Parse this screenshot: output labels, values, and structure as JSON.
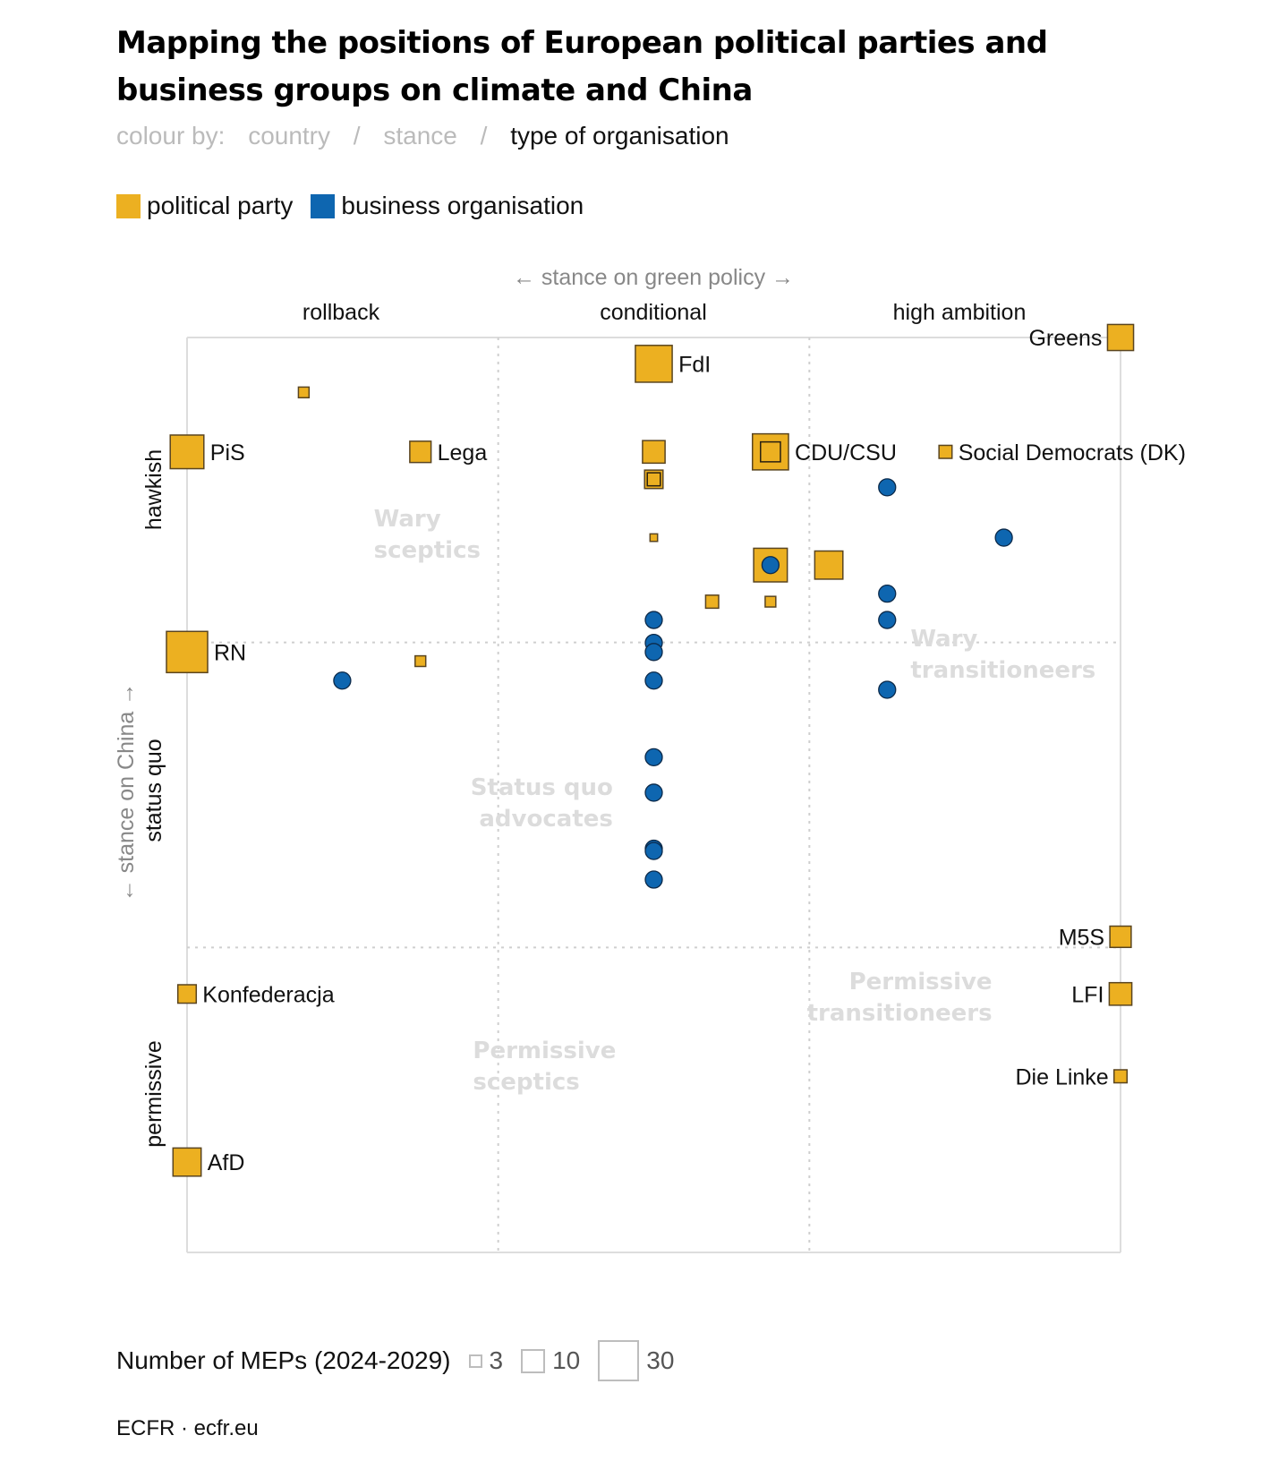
{
  "title": "Mapping the positions of European political parties and business groups on climate and China",
  "colour_by": {
    "label": "colour by:",
    "options": [
      "country",
      "stance",
      "type of organisation"
    ],
    "separator": "/",
    "active": "type of organisation"
  },
  "legend": [
    {
      "label": "political party",
      "color": "#ecb021"
    },
    {
      "label": "business organisation",
      "color": "#0e66b0"
    }
  ],
  "size_legend": {
    "label": "Number of MEPs (2024-2029)",
    "values": [
      "3",
      "10",
      "30"
    ]
  },
  "source": "ECFR · ecfr.eu",
  "chart_data": {
    "type": "scatter",
    "title": "Mapping the positions of European political parties and business groups on climate and China",
    "xlabel": "← stance on green policy →",
    "ylabel": "← stance on China →",
    "x_categories": [
      "rollback",
      "conditional",
      "high ambition"
    ],
    "y_categories": [
      "hawkish",
      "status quo",
      "permissive"
    ],
    "xlim": [
      0,
      8
    ],
    "ylim": [
      0,
      8
    ],
    "grid": "dotted lines at category thirds",
    "quadrant_labels": [
      {
        "text": [
          "Wary",
          "sceptics"
        ],
        "x": 1.6,
        "y": 6.35,
        "anchor": "start"
      },
      {
        "text": [
          "Wary",
          "transitioneers"
        ],
        "x": 6.2,
        "y": 5.3,
        "anchor": "start"
      },
      {
        "text": [
          "Status quo",
          "advocates"
        ],
        "x": 3.65,
        "y": 4.0,
        "anchor": "end"
      },
      {
        "text": [
          "Permissive",
          "transitioneers"
        ],
        "x": 6.9,
        "y": 2.3,
        "anchor": "end"
      },
      {
        "text": [
          "Permissive",
          "sceptics"
        ],
        "x": 2.45,
        "y": 1.7,
        "anchor": "start"
      }
    ],
    "series": [
      {
        "name": "political party",
        "marker": "square",
        "color": "#ecb021",
        "points": [
          {
            "label": "Greens",
            "x": 8.0,
            "y": 8.0,
            "meps": 12,
            "label_side": "left"
          },
          {
            "label": "FdI",
            "x": 4.0,
            "y": 7.77,
            "meps": 24,
            "label_side": "right"
          },
          {
            "label": "",
            "x": 1.0,
            "y": 7.52,
            "meps": 2
          },
          {
            "label": "PiS",
            "x": 0.0,
            "y": 7.0,
            "meps": 20,
            "label_side": "right"
          },
          {
            "label": "Lega",
            "x": 2.0,
            "y": 7.0,
            "meps": 8,
            "label_side": "right"
          },
          {
            "label": "",
            "x": 4.0,
            "y": 7.0,
            "meps": 9
          },
          {
            "label": "CDU/CSU",
            "x": 5.0,
            "y": 7.0,
            "meps": 23,
            "inner_meps": 7,
            "label_side": "right"
          },
          {
            "label": "Social Democrats (DK)",
            "x": 6.5,
            "y": 7.0,
            "meps": 3,
            "label_side": "right"
          },
          {
            "label": "",
            "x": 4.0,
            "y": 6.76,
            "meps": 6,
            "inner_meps": 3
          },
          {
            "label": "",
            "x": 4.0,
            "y": 6.25,
            "meps": 1
          },
          {
            "label": "",
            "x": 5.0,
            "y": 6.01,
            "meps": 20
          },
          {
            "label": "",
            "x": 5.5,
            "y": 6.01,
            "meps": 14
          },
          {
            "label": "",
            "x": 4.5,
            "y": 5.69,
            "meps": 3
          },
          {
            "label": "",
            "x": 5.0,
            "y": 5.69,
            "meps": 2
          },
          {
            "label": "RN",
            "x": 0.0,
            "y": 5.25,
            "meps": 30,
            "label_side": "right"
          },
          {
            "label": "",
            "x": 2.0,
            "y": 5.17,
            "meps": 2
          },
          {
            "label": "M5S",
            "x": 8.0,
            "y": 2.76,
            "meps": 8,
            "label_side": "left"
          },
          {
            "label": "Konfederacja",
            "x": 0.0,
            "y": 2.26,
            "meps": 6,
            "label_side": "right"
          },
          {
            "label": "LFI",
            "x": 8.0,
            "y": 2.26,
            "meps": 9,
            "label_side": "left"
          },
          {
            "label": "Die Linke",
            "x": 8.0,
            "y": 1.54,
            "meps": 3,
            "label_side": "left"
          },
          {
            "label": "AfD",
            "x": 0.0,
            "y": 0.79,
            "meps": 14,
            "label_side": "right"
          }
        ]
      },
      {
        "name": "business organisation",
        "marker": "circle",
        "color": "#0e66b0",
        "points": [
          {
            "x": 6.0,
            "y": 6.69
          },
          {
            "x": 7.0,
            "y": 6.25
          },
          {
            "x": 5.0,
            "y": 6.01
          },
          {
            "x": 6.0,
            "y": 5.76
          },
          {
            "x": 6.0,
            "y": 5.53
          },
          {
            "x": 4.0,
            "y": 5.53
          },
          {
            "x": 4.0,
            "y": 5.33
          },
          {
            "x": 4.0,
            "y": 5.25
          },
          {
            "x": 1.33,
            "y": 5.0
          },
          {
            "x": 4.0,
            "y": 5.0
          },
          {
            "x": 6.0,
            "y": 4.92
          },
          {
            "x": 4.0,
            "y": 4.33
          },
          {
            "x": 4.0,
            "y": 4.02
          },
          {
            "x": 4.0,
            "y": 3.53
          },
          {
            "x": 4.0,
            "y": 3.51
          },
          {
            "x": 4.0,
            "y": 3.26
          }
        ]
      }
    ]
  }
}
